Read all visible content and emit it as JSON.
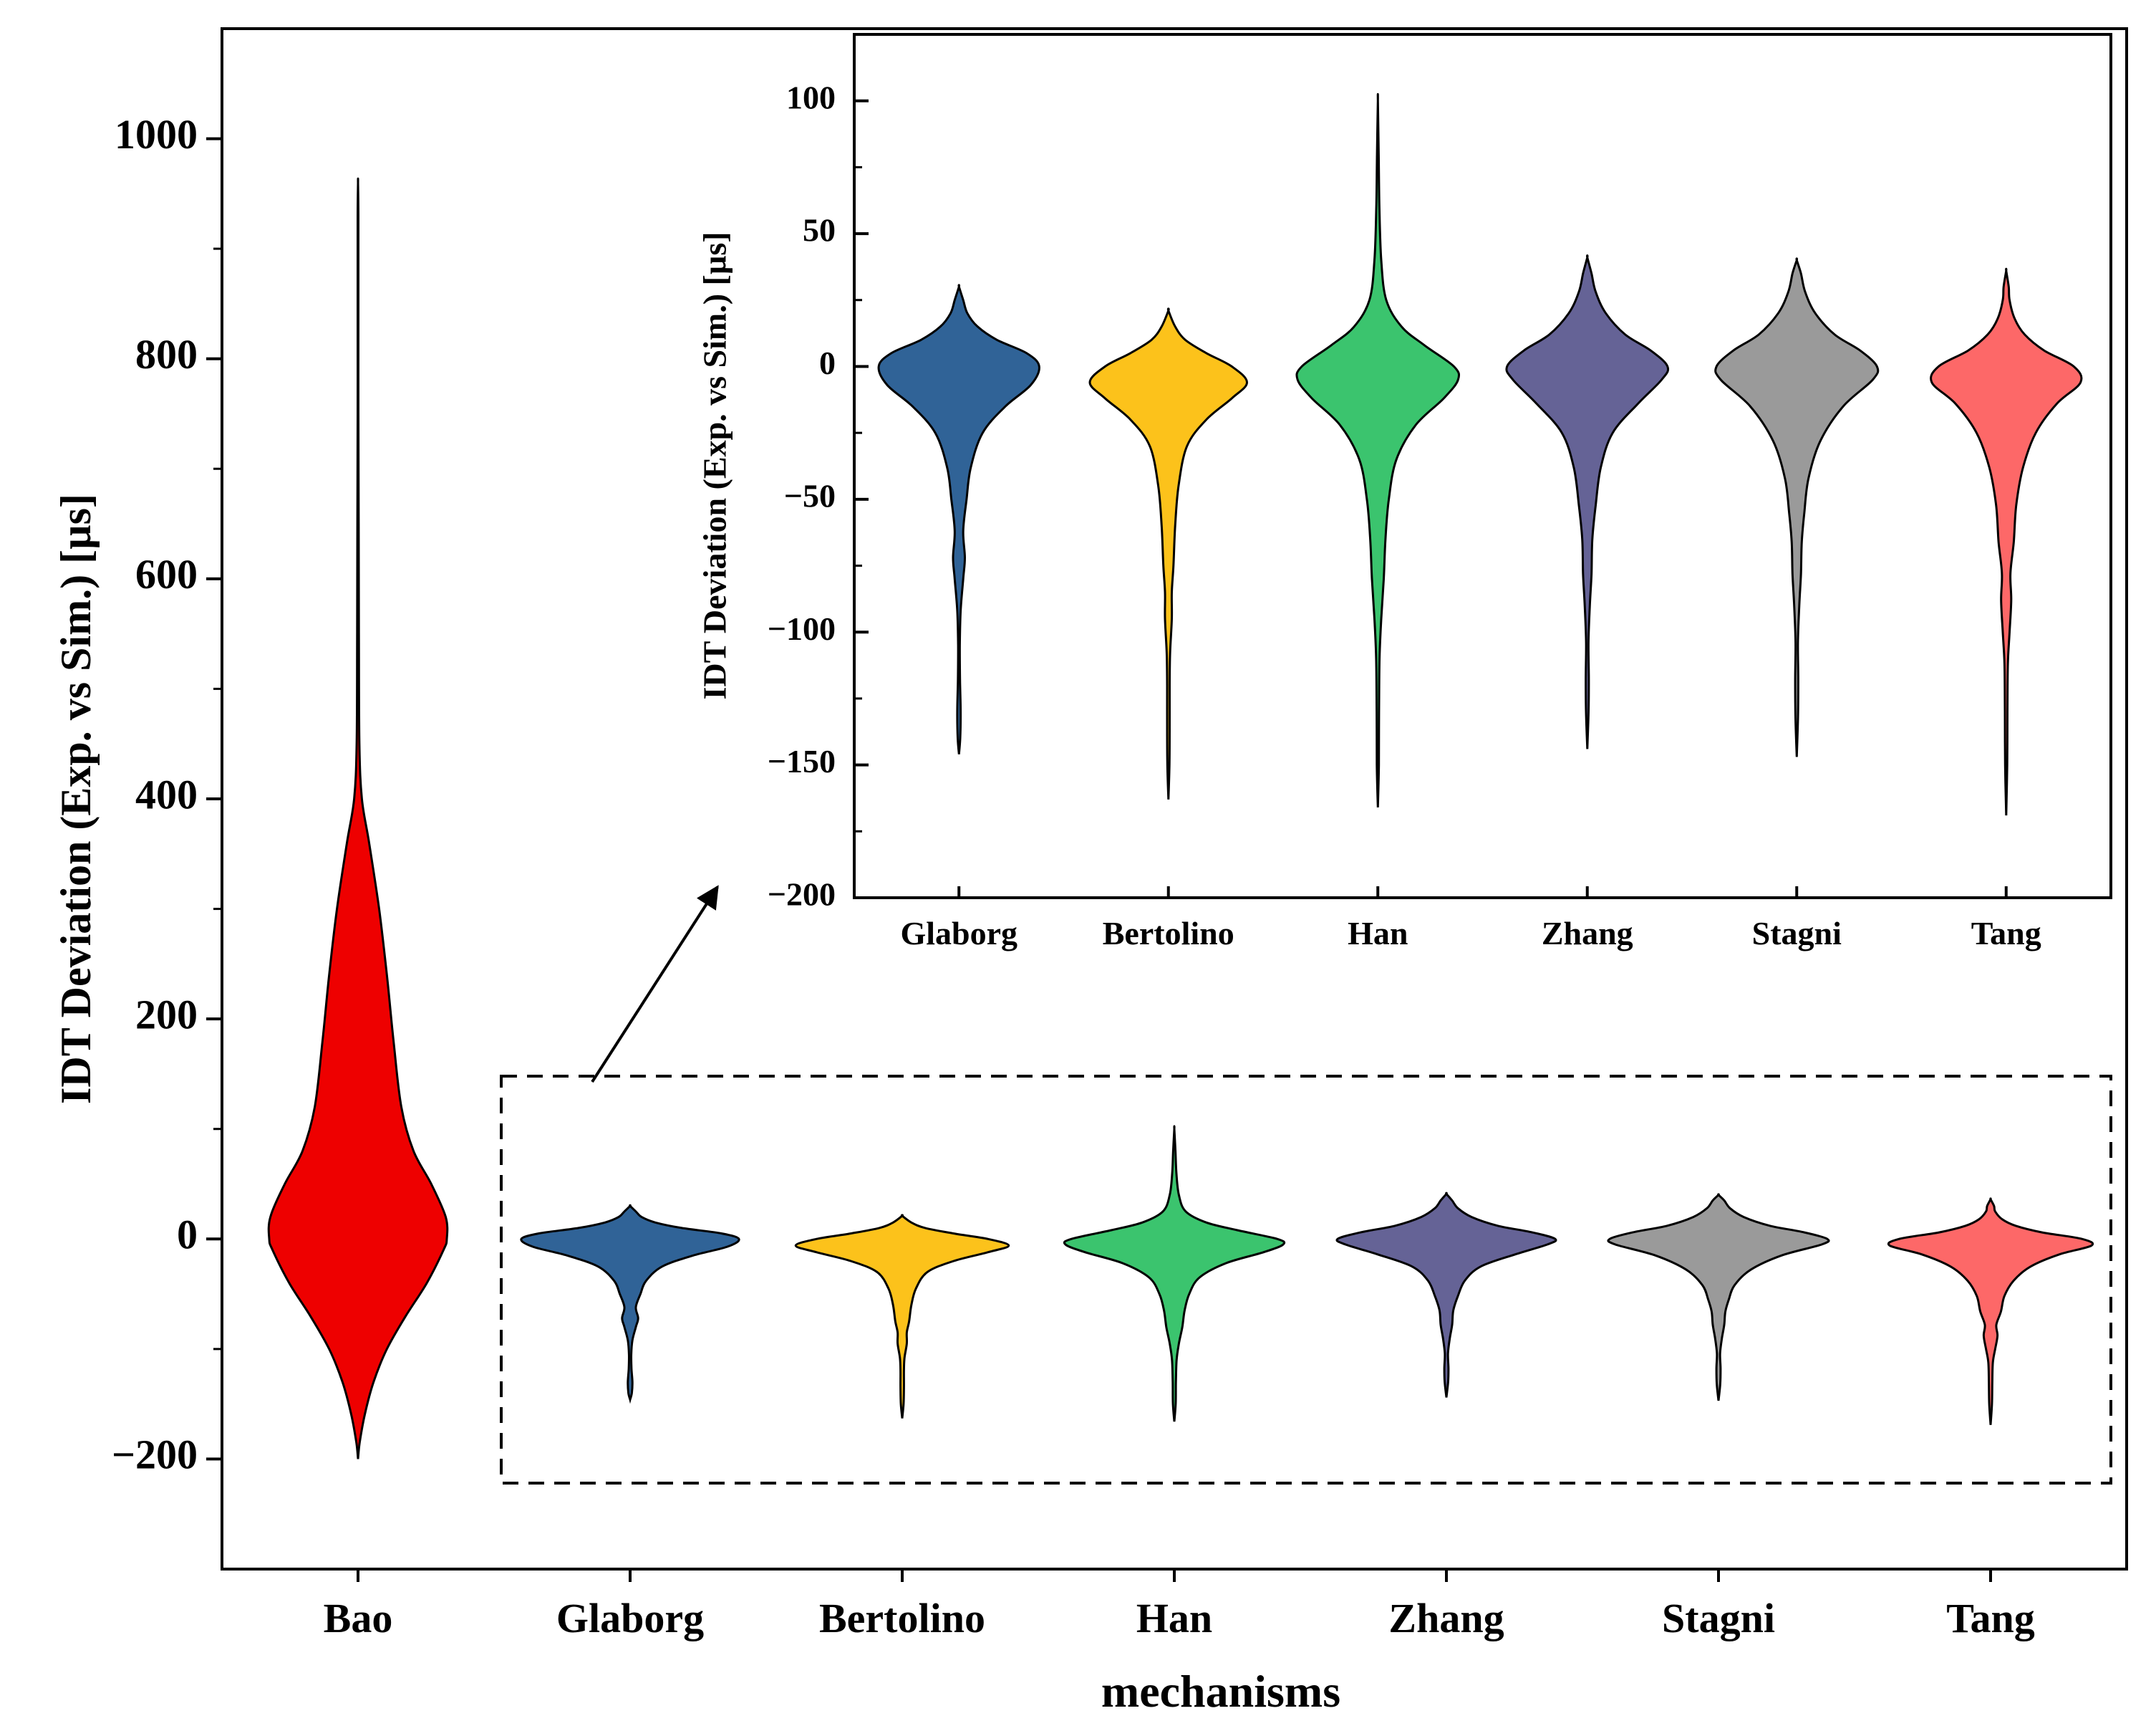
{
  "chart_data": [
    {
      "id": "main",
      "type": "violin",
      "title": "",
      "xlabel": "mechanisms",
      "ylabel": "IDT Deviation (Exp. vs Sim.) [µs]",
      "ylim": [
        -300,
        1100
      ],
      "yticks": [
        -200,
        0,
        200,
        400,
        600,
        800,
        1000
      ],
      "ytick_labels": [
        "−200",
        "0",
        "200",
        "400",
        "600",
        "800",
        "1000"
      ],
      "categories": [
        "Bao",
        "Glaborg",
        "Bertolino",
        "Han",
        "Zhang",
        "Stagni",
        "Tang"
      ],
      "series": [
        {
          "name": "Bao",
          "color": "#ee0000",
          "min": -200,
          "max": 960,
          "profile": [
            [
              -200,
              0
            ],
            [
              -185,
              0.015
            ],
            [
              -160,
              0.06
            ],
            [
              -130,
              0.14
            ],
            [
              -100,
              0.26
            ],
            [
              -70,
              0.43
            ],
            [
              -40,
              0.62
            ],
            [
              -10,
              0.77
            ],
            [
              0,
              0.8
            ],
            [
              20,
              0.79
            ],
            [
              50,
              0.66
            ],
            [
              80,
              0.5
            ],
            [
              120,
              0.39
            ],
            [
              180,
              0.32
            ],
            [
              240,
              0.26
            ],
            [
              300,
              0.19
            ],
            [
              360,
              0.1
            ],
            [
              400,
              0.035
            ],
            [
              450,
              0.012
            ],
            [
              550,
              0.008
            ],
            [
              650,
              0.006
            ],
            [
              750,
              0.003
            ],
            [
              850,
              0.003
            ],
            [
              930,
              0.003
            ],
            [
              960,
              0
            ]
          ]
        },
        {
          "name": "Glaborg",
          "color": "#306397",
          "min": -146,
          "max": 30,
          "profile": [
            [
              -146,
              0
            ],
            [
              -140,
              0.015
            ],
            [
              -130,
              0.02
            ],
            [
              -118,
              0.012
            ],
            [
              -105,
              0.01
            ],
            [
              -92,
              0.02
            ],
            [
              -80,
              0.05
            ],
            [
              -72,
              0.07
            ],
            [
              -62,
              0.05
            ],
            [
              -50,
              0.09
            ],
            [
              -38,
              0.14
            ],
            [
              -25,
              0.28
            ],
            [
              -15,
              0.55
            ],
            [
              -7,
              0.85
            ],
            [
              0,
              0.95
            ],
            [
              5,
              0.8
            ],
            [
              10,
              0.45
            ],
            [
              15,
              0.22
            ],
            [
              20,
              0.1
            ],
            [
              25,
              0.05
            ],
            [
              30,
              0
            ]
          ]
        },
        {
          "name": "Bertolino",
          "color": "#fcc21b",
          "min": -163,
          "max": 21,
          "profile": [
            [
              -163,
              0
            ],
            [
              -150,
              0.012
            ],
            [
              -135,
              0.015
            ],
            [
              -120,
              0.015
            ],
            [
              -108,
              0.02
            ],
            [
              -95,
              0.04
            ],
            [
              -85,
              0.04
            ],
            [
              -75,
              0.06
            ],
            [
              -60,
              0.08
            ],
            [
              -45,
              0.12
            ],
            [
              -30,
              0.22
            ],
            [
              -20,
              0.45
            ],
            [
              -12,
              0.75
            ],
            [
              -6,
              0.93
            ],
            [
              0,
              0.75
            ],
            [
              5,
              0.45
            ],
            [
              10,
              0.2
            ],
            [
              15,
              0.08
            ],
            [
              21,
              0
            ]
          ]
        },
        {
          "name": "Han",
          "color": "#3bc46e",
          "min": -166,
          "max": 100,
          "profile": [
            [
              -166,
              0
            ],
            [
              -150,
              0.012
            ],
            [
              -130,
              0.014
            ],
            [
              -110,
              0.02
            ],
            [
              -95,
              0.04
            ],
            [
              -80,
              0.07
            ],
            [
              -65,
              0.09
            ],
            [
              -50,
              0.13
            ],
            [
              -35,
              0.22
            ],
            [
              -22,
              0.45
            ],
            [
              -12,
              0.78
            ],
            [
              -5,
              0.95
            ],
            [
              0,
              0.9
            ],
            [
              8,
              0.55
            ],
            [
              15,
              0.28
            ],
            [
              25,
              0.1
            ],
            [
              40,
              0.04
            ],
            [
              60,
              0.018
            ],
            [
              80,
              0.01
            ],
            [
              100,
              0
            ]
          ]
        },
        {
          "name": "Zhang",
          "color": "#656396",
          "min": -144,
          "max": 41,
          "profile": [
            [
              -144,
              0
            ],
            [
              -130,
              0.015
            ],
            [
              -118,
              0.018
            ],
            [
              -104,
              0.014
            ],
            [
              -90,
              0.03
            ],
            [
              -78,
              0.05
            ],
            [
              -65,
              0.06
            ],
            [
              -52,
              0.1
            ],
            [
              -38,
              0.16
            ],
            [
              -25,
              0.3
            ],
            [
              -14,
              0.6
            ],
            [
              -5,
              0.88
            ],
            [
              0,
              0.95
            ],
            [
              6,
              0.75
            ],
            [
              12,
              0.45
            ],
            [
              20,
              0.22
            ],
            [
              28,
              0.1
            ],
            [
              35,
              0.05
            ],
            [
              41,
              0
            ]
          ]
        },
        {
          "name": "Stagni",
          "color": "#9a9a9a",
          "min": -147,
          "max": 40,
          "profile": [
            [
              -147,
              0
            ],
            [
              -132,
              0.015
            ],
            [
              -118,
              0.018
            ],
            [
              -104,
              0.014
            ],
            [
              -90,
              0.03
            ],
            [
              -78,
              0.05
            ],
            [
              -66,
              0.06
            ],
            [
              -55,
              0.09
            ],
            [
              -42,
              0.14
            ],
            [
              -28,
              0.28
            ],
            [
              -15,
              0.55
            ],
            [
              -5,
              0.9
            ],
            [
              0,
              0.95
            ],
            [
              6,
              0.75
            ],
            [
              12,
              0.45
            ],
            [
              20,
              0.22
            ],
            [
              28,
              0.1
            ],
            [
              35,
              0.05
            ],
            [
              40,
              0
            ]
          ]
        },
        {
          "name": "Tang",
          "color": "#fd6868",
          "min": -169,
          "max": 36,
          "profile": [
            [
              -169,
              0
            ],
            [
              -150,
              0.012
            ],
            [
              -130,
              0.015
            ],
            [
              -112,
              0.02
            ],
            [
              -100,
              0.04
            ],
            [
              -88,
              0.06
            ],
            [
              -78,
              0.05
            ],
            [
              -66,
              0.09
            ],
            [
              -52,
              0.12
            ],
            [
              -38,
              0.2
            ],
            [
              -25,
              0.35
            ],
            [
              -14,
              0.6
            ],
            [
              -6,
              0.88
            ],
            [
              0,
              0.8
            ],
            [
              6,
              0.45
            ],
            [
              12,
              0.22
            ],
            [
              18,
              0.1
            ],
            [
              25,
              0.04
            ],
            [
              30,
              0.03
            ],
            [
              36,
              0
            ]
          ]
        }
      ]
    },
    {
      "id": "inset",
      "type": "violin",
      "title": "",
      "xlabel": "",
      "ylabel": "IDT Deviation (Exp. vs Sim.) [µs]",
      "ylim": [
        -200,
        125
      ],
      "yticks": [
        -200,
        -150,
        -100,
        -50,
        0,
        50,
        100
      ],
      "ytick_labels": [
        "−200",
        "−150",
        "−100",
        "−50",
        "0",
        "50",
        "100"
      ],
      "categories": [
        "Glaborg",
        "Bertolino",
        "Han",
        "Zhang",
        "Stagni",
        "Tang"
      ],
      "note": "zoomed view of the dashed region (uses the same series as the main chart, excluding Bao)"
    }
  ]
}
